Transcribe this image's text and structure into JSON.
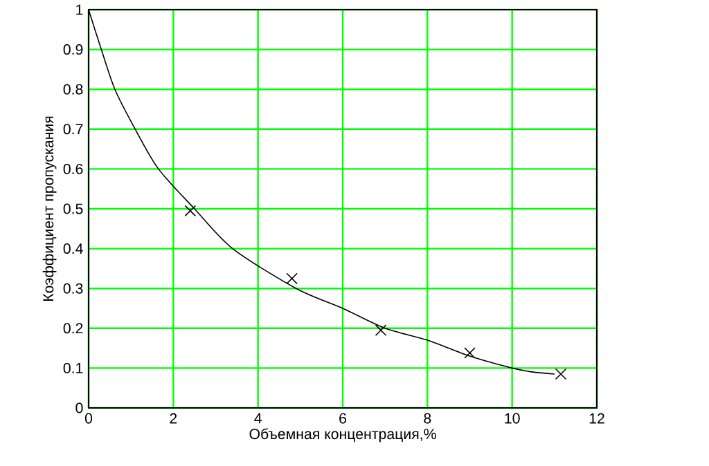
{
  "chart_data": {
    "type": "line",
    "xlabel": "Объемная концентрация,%",
    "ylabel": "Коэффициент пропускания",
    "xlim": [
      0,
      12
    ],
    "ylim": [
      0,
      1
    ],
    "xticks": [
      0,
      2,
      4,
      6,
      8,
      10,
      12
    ],
    "yticks": [
      0,
      0.1,
      0.2,
      0.3,
      0.4,
      0.5,
      0.6,
      0.7,
      0.8,
      0.9,
      1
    ],
    "grid": true,
    "series": [
      {
        "color": "#000000",
        "marker": "none",
        "x": [
          0,
          0.3,
          0.62,
          1.1,
          1.65,
          2.5,
          3.4,
          4.9,
          6,
          7,
          8,
          9,
          10,
          10.5,
          11
        ],
        "values": [
          1,
          0.9,
          0.8,
          0.7,
          0.6,
          0.5,
          0.4,
          0.3,
          0.25,
          0.2,
          0.17,
          0.13,
          0.1,
          0.09,
          0.085
        ]
      },
      {
        "type": "scatter",
        "color": "#000000",
        "marker": "cross",
        "x": [
          2.4,
          4.8,
          6.9,
          9.0,
          11.15
        ],
        "values": [
          0.495,
          0.325,
          0.195,
          0.138,
          0.085
        ]
      }
    ]
  }
}
